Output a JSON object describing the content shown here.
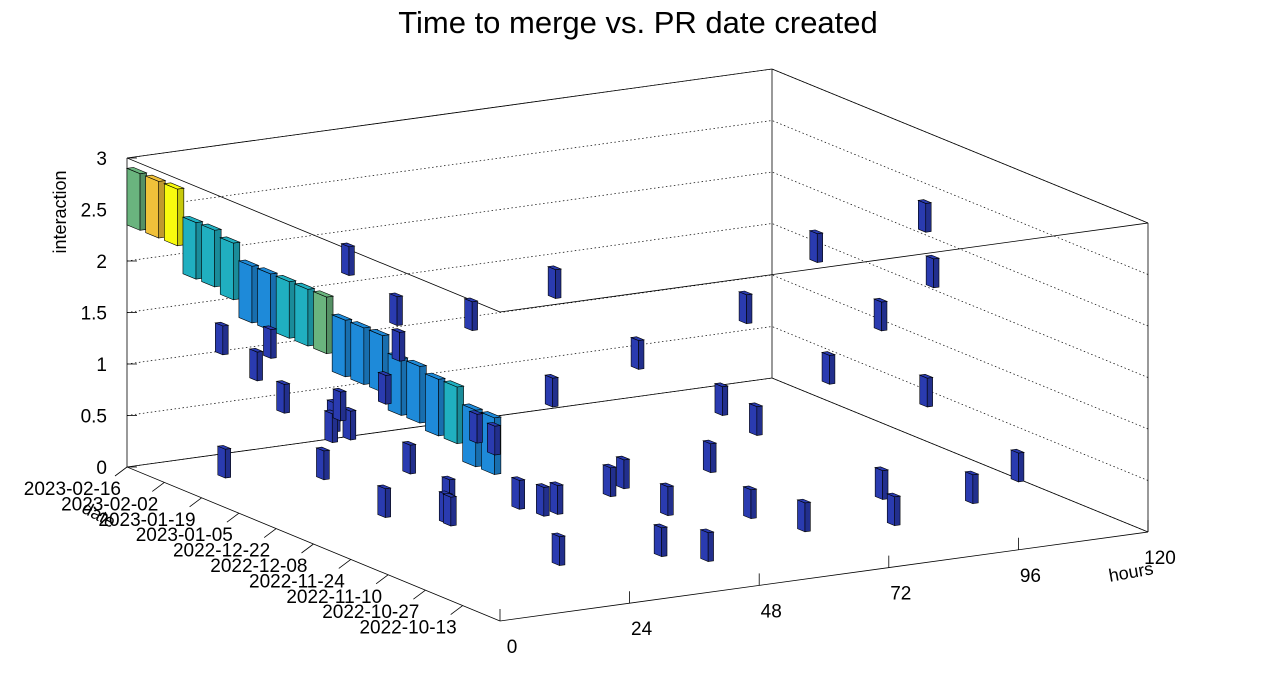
{
  "chart_data": {
    "type": "3d-bar",
    "title": "Time to merge vs. PR date created",
    "xlabel": "hours",
    "ylabel": "date",
    "zlabel": "interaction",
    "xlim": [
      0,
      120
    ],
    "zlim": [
      0,
      3
    ],
    "x_ticks": [
      "0",
      "24",
      "48",
      "72",
      "96",
      "120"
    ],
    "z_ticks": [
      "0",
      "0.5",
      "1",
      "1.5",
      "2",
      "2.5",
      "3"
    ],
    "date_ticks": [
      "2023-02-16",
      "2023-02-02",
      "2023-01-19",
      "2023-01-05",
      "2022-12-22",
      "2022-12-08",
      "2022-11-24",
      "2022-11-10",
      "2022-10-27",
      "2022-10-13"
    ],
    "hot_bars": [
      {
        "hours": 0,
        "date_frac": 0.0,
        "value": 2.9,
        "count": 3
      },
      {
        "hours": 0,
        "date_frac": 0.05,
        "value": 2.9,
        "count": 4
      },
      {
        "hours": 0,
        "date_frac": 0.1,
        "value": 2.9,
        "count": 5
      },
      {
        "hours": 0,
        "date_frac": 0.15,
        "value": 2.65,
        "count": 2
      },
      {
        "hours": 0,
        "date_frac": 0.2,
        "value": 2.65,
        "count": 2
      },
      {
        "hours": 0,
        "date_frac": 0.25,
        "value": 2.6,
        "count": 2
      },
      {
        "hours": 0,
        "date_frac": 0.3,
        "value": 2.45,
        "count": 1
      },
      {
        "hours": 0,
        "date_frac": 0.35,
        "value": 2.45,
        "count": 1
      },
      {
        "hours": 0,
        "date_frac": 0.4,
        "value": 2.45,
        "count": 2
      },
      {
        "hours": 0,
        "date_frac": 0.45,
        "value": 2.45,
        "count": 2
      },
      {
        "hours": 0,
        "date_frac": 0.5,
        "value": 2.45,
        "count": 3
      },
      {
        "hours": 0,
        "date_frac": 0.55,
        "value": 2.3,
        "count": 1
      },
      {
        "hours": 0,
        "date_frac": 0.6,
        "value": 2.3,
        "count": 1
      },
      {
        "hours": 0,
        "date_frac": 0.65,
        "value": 2.3,
        "count": 1
      },
      {
        "hours": 0,
        "date_frac": 0.7,
        "value": 2.15,
        "count": 1
      },
      {
        "hours": 0,
        "date_frac": 0.75,
        "value": 2.15,
        "count": 1
      },
      {
        "hours": 0,
        "date_frac": 0.8,
        "value": 2.1,
        "count": 1
      },
      {
        "hours": 0,
        "date_frac": 0.85,
        "value": 2.1,
        "count": 2
      },
      {
        "hours": 0,
        "date_frac": 0.9,
        "value": 1.95,
        "count": 1
      },
      {
        "hours": 0,
        "date_frac": 0.95,
        "value": 1.95,
        "count": 1
      }
    ],
    "colors": {
      "count1": "#1e8ad9",
      "count2": "#20afc0",
      "count3": "#6ab47e",
      "count4": "#f0c13a",
      "count5": "#f9fb0e",
      "sparse": "#2a3bb0"
    }
  }
}
